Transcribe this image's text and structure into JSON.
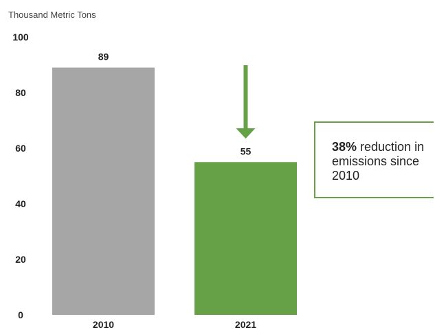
{
  "chart_data": {
    "type": "bar",
    "ylabel": "Thousand Metric Tons",
    "categories": [
      "2010",
      "2021"
    ],
    "values": [
      89,
      55
    ],
    "ylim": [
      0,
      100
    ],
    "yticks": [
      0,
      20,
      40,
      60,
      80,
      100
    ],
    "colors": [
      "#a6a6a6",
      "#66a047"
    ],
    "arrow_color": "#66a047",
    "annotation": {
      "emphasis": "38%",
      "text": " reduction in emissions since 2010",
      "border_color": "#6a9e47"
    },
    "grid": false,
    "legend": false
  }
}
